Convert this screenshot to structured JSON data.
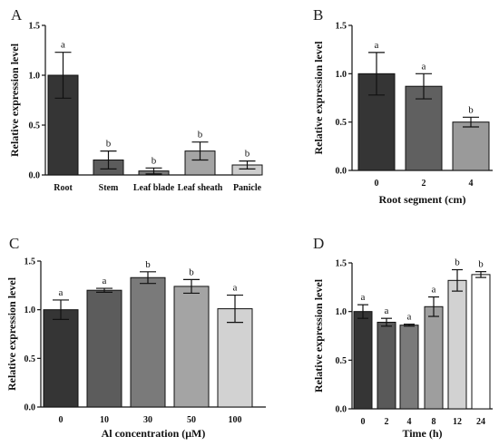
{
  "chart_data": [
    {
      "panel": "A",
      "type": "bar",
      "categories": [
        "Root",
        "Stem",
        "Leaf blade",
        "Leaf sheath",
        "Panicle"
      ],
      "values": [
        1.0,
        0.15,
        0.04,
        0.24,
        0.1
      ],
      "errors": [
        0.23,
        0.09,
        0.03,
        0.09,
        0.04
      ],
      "significance": [
        "a",
        "b",
        "b",
        "b",
        "b"
      ],
      "colors": [
        "#353535",
        "#5c5c5c",
        "#7a7a7a",
        "#a4a4a4",
        "#cdcdcd"
      ],
      "xlabel": "",
      "ylabel": "Relative expression level",
      "ylim": [
        0,
        1.5
      ],
      "yticks": [
        "0.0",
        "0.5",
        "1.0",
        "1.5"
      ]
    },
    {
      "panel": "B",
      "type": "bar",
      "categories": [
        "0",
        "2",
        "4"
      ],
      "values": [
        1.0,
        0.87,
        0.5
      ],
      "errors": [
        0.22,
        0.13,
        0.05
      ],
      "significance": [
        "a",
        "a",
        "b"
      ],
      "colors": [
        "#353535",
        "#606060",
        "#9a9a9a"
      ],
      "xlabel": "Root segment (cm)",
      "ylabel": "Relative expression level",
      "ylim": [
        0,
        1.5
      ],
      "yticks": [
        "0.0",
        "0.5",
        "1.0",
        "1.5"
      ]
    },
    {
      "panel": "C",
      "type": "bar",
      "categories": [
        "0",
        "10",
        "30",
        "50",
        "100"
      ],
      "values": [
        1.0,
        1.2,
        1.33,
        1.24,
        1.01
      ],
      "errors": [
        0.1,
        0.02,
        0.06,
        0.07,
        0.14
      ],
      "significance": [
        "a",
        "a",
        "b",
        "b",
        "a"
      ],
      "colors": [
        "#353535",
        "#5c5c5c",
        "#7a7a7a",
        "#a4a4a4",
        "#d2d2d2"
      ],
      "xlabel": "Al concentration (μM)",
      "ylabel": "Relative expression level",
      "ylim": [
        0,
        1.5
      ],
      "yticks": [
        "0.0",
        "0.5",
        "1.0",
        "1.5"
      ]
    },
    {
      "panel": "D",
      "type": "bar",
      "categories": [
        "0",
        "2",
        "4",
        "8",
        "12",
        "24"
      ],
      "values": [
        1.0,
        0.89,
        0.86,
        1.05,
        1.32,
        1.38
      ],
      "errors": [
        0.07,
        0.04,
        0.01,
        0.1,
        0.11,
        0.03
      ],
      "significance": [
        "a",
        "a",
        "a",
        "a",
        "b",
        "b"
      ],
      "colors": [
        "#353535",
        "#595959",
        "#7a7a7a",
        "#9e9e9e",
        "#d2d2d2",
        "#ffffff"
      ],
      "xlabel": "Time (h)",
      "ylabel": "Relative expression level",
      "ylim": [
        0,
        1.5
      ],
      "yticks": [
        "0.0",
        "0.5",
        "1.0",
        "1.5"
      ]
    }
  ]
}
